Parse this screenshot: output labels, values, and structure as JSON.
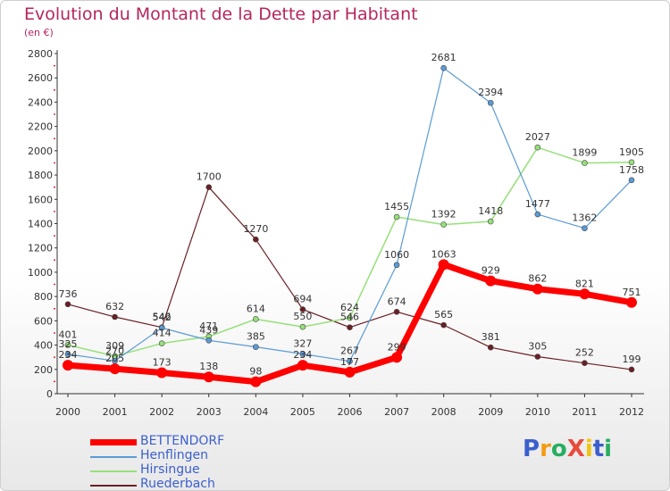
{
  "chart_data": {
    "type": "line",
    "title": "Evolution du Montant de la Dette par Habitant",
    "subtitle": "(en €)",
    "x": [
      "2000",
      "2001",
      "2002",
      "2003",
      "2004",
      "2005",
      "2006",
      "2007",
      "2008",
      "2009",
      "2010",
      "2011",
      "2012"
    ],
    "ylim": [
      0,
      2800
    ],
    "yticks": [
      0,
      200,
      400,
      600,
      800,
      1000,
      1200,
      1400,
      1600,
      1800,
      2000,
      2200,
      2400,
      2600,
      2800
    ],
    "grid": false,
    "legend_position": "bottom-left",
    "series": [
      {
        "name": "Ruederbach",
        "color": "#6b1f24",
        "width": 1.2,
        "marker": 3,
        "values": [
          736,
          632,
          546,
          1700,
          1270,
          694,
          546,
          674,
          565,
          381,
          305,
          252,
          199
        ]
      },
      {
        "name": "Hirsingue",
        "color": "#96e07a",
        "width": 1.5,
        "marker": 3,
        "values": [
          401,
          309,
          414,
          471,
          614,
          550,
          624,
          1455,
          1392,
          1418,
          2027,
          1899,
          1905
        ]
      },
      {
        "name": "Henflingen",
        "color": "#5b9bd5",
        "width": 1.2,
        "marker": 3,
        "values": [
          325,
          270,
          542,
          439,
          385,
          327,
          267,
          1060,
          2681,
          2394,
          1477,
          1362,
          1758
        ]
      },
      {
        "name": "BETTENDORF",
        "color": "#ff0000",
        "width": 7,
        "marker": 6,
        "values": [
          234,
          205,
          173,
          138,
          98,
          234,
          177,
          299,
          1063,
          929,
          862,
          821,
          751
        ]
      }
    ]
  },
  "legend": [
    {
      "name": "BETTENDORF",
      "color": "#ff0000"
    },
    {
      "name": "Henflingen",
      "color": "#5b9bd5"
    },
    {
      "name": "Hirsingue",
      "color": "#96e07a"
    },
    {
      "name": "Ruederbach",
      "color": "#6b1f24"
    }
  ],
  "logo": {
    "text": "ProXiti",
    "colors": [
      "#3a5fcd",
      "#f39c12",
      "#27ae60",
      "#e74c3c",
      "#f1c40f",
      "#3a5fcd",
      "#27ae60"
    ]
  }
}
